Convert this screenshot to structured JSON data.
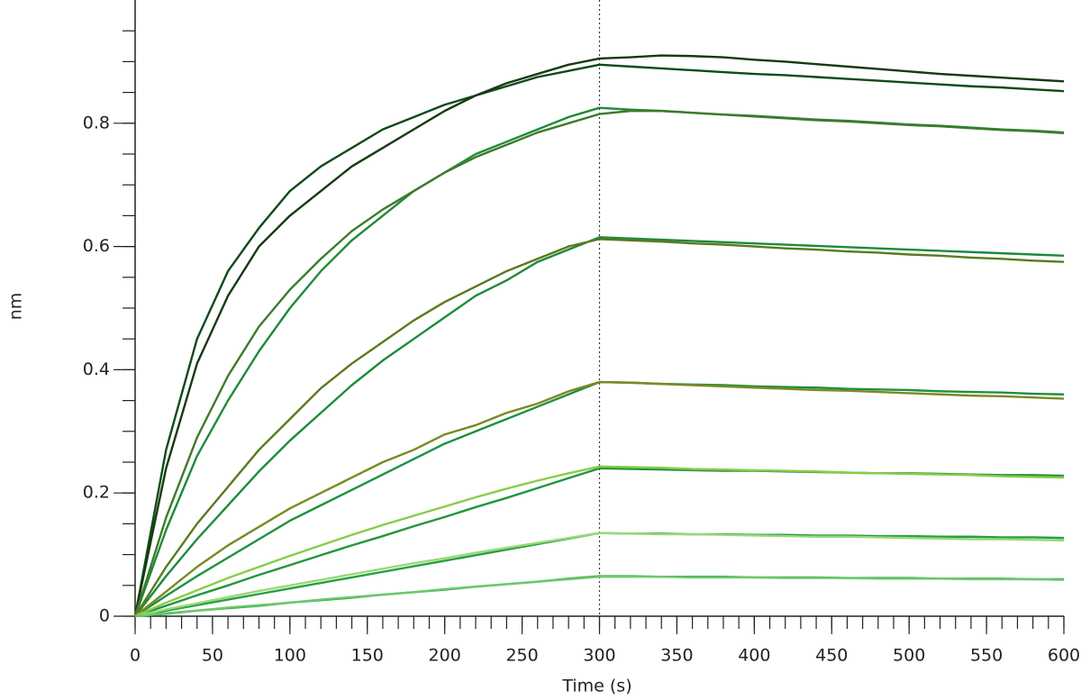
{
  "chart_data": {
    "type": "line",
    "xlabel": "Time (s)",
    "ylabel": "nm",
    "x": [
      0,
      20,
      40,
      60,
      80,
      100,
      120,
      140,
      160,
      180,
      200,
      220,
      240,
      260,
      280,
      300,
      320,
      340,
      360,
      380,
      400,
      420,
      440,
      460,
      480,
      500,
      520,
      540,
      560,
      580,
      600
    ],
    "xlim": [
      0,
      600
    ],
    "xticks": [
      0,
      50,
      100,
      150,
      200,
      250,
      300,
      350,
      400,
      450,
      500,
      550,
      600
    ],
    "xminor_ticks": [
      0,
      10,
      20,
      30,
      40,
      50,
      60,
      70,
      80,
      90,
      100,
      110,
      120,
      130,
      140,
      150,
      160,
      170,
      180,
      190,
      200,
      210,
      220,
      230,
      240,
      250,
      260,
      270,
      280,
      290,
      300,
      310,
      320,
      330,
      340,
      350,
      360,
      370,
      380,
      390,
      400,
      410,
      420,
      430,
      440,
      450,
      460,
      470,
      480,
      490,
      500,
      510,
      520,
      530,
      540,
      550,
      560,
      570,
      580,
      590,
      600
    ],
    "ylim": [
      0,
      1.0
    ],
    "yticks": [
      0,
      0.2,
      0.4,
      0.6,
      0.8
    ],
    "yminor_ticks": [
      0,
      0.05,
      0.1,
      0.15,
      0.2,
      0.25,
      0.3,
      0.35,
      0.4,
      0.45,
      0.5,
      0.55,
      0.6,
      0.65,
      0.7,
      0.75,
      0.8,
      0.85,
      0.9,
      0.95
    ],
    "vlines": [
      300
    ],
    "series": [
      {
        "color": "#0f4a1a",
        "values": [
          0,
          0.27,
          0.45,
          0.56,
          0.63,
          0.69,
          0.73,
          0.76,
          0.79,
          0.81,
          0.83,
          0.845,
          0.86,
          0.875,
          0.885,
          0.895,
          0.892,
          0.889,
          0.886,
          0.883,
          0.88,
          0.878,
          0.875,
          0.872,
          0.869,
          0.866,
          0.863,
          0.86,
          0.858,
          0.855,
          0.852
        ]
      },
      {
        "color": "#163a12",
        "values": [
          0,
          0.24,
          0.41,
          0.52,
          0.6,
          0.65,
          0.69,
          0.73,
          0.76,
          0.79,
          0.82,
          0.845,
          0.865,
          0.88,
          0.895,
          0.905,
          0.907,
          0.91,
          0.909,
          0.907,
          0.903,
          0.9,
          0.896,
          0.892,
          0.888,
          0.884,
          0.88,
          0.877,
          0.874,
          0.871,
          0.868
        ]
      },
      {
        "color": "#1f8a3a",
        "values": [
          0,
          0.14,
          0.26,
          0.35,
          0.43,
          0.5,
          0.56,
          0.61,
          0.65,
          0.69,
          0.72,
          0.75,
          0.77,
          0.79,
          0.81,
          0.825,
          0.822,
          0.82,
          0.817,
          0.814,
          0.812,
          0.809,
          0.806,
          0.804,
          0.801,
          0.798,
          0.796,
          0.793,
          0.79,
          0.788,
          0.785
        ]
      },
      {
        "color": "#3f7a2a",
        "values": [
          0,
          0.16,
          0.29,
          0.39,
          0.47,
          0.53,
          0.58,
          0.625,
          0.66,
          0.69,
          0.72,
          0.745,
          0.765,
          0.785,
          0.8,
          0.815,
          0.82,
          0.82,
          0.817,
          0.814,
          0.811,
          0.808,
          0.805,
          0.803,
          0.8,
          0.797,
          0.795,
          0.792,
          0.789,
          0.787,
          0.784
        ]
      },
      {
        "color": "#1d8a3c",
        "values": [
          0,
          0.065,
          0.125,
          0.18,
          0.235,
          0.285,
          0.33,
          0.375,
          0.415,
          0.45,
          0.485,
          0.52,
          0.545,
          0.575,
          0.595,
          0.615,
          0.613,
          0.611,
          0.609,
          0.607,
          0.605,
          0.603,
          0.601,
          0.599,
          0.597,
          0.595,
          0.593,
          0.591,
          0.589,
          0.587,
          0.585
        ]
      },
      {
        "color": "#5a7a1e",
        "values": [
          0,
          0.08,
          0.15,
          0.21,
          0.27,
          0.32,
          0.37,
          0.41,
          0.445,
          0.48,
          0.51,
          0.535,
          0.56,
          0.58,
          0.6,
          0.612,
          0.61,
          0.608,
          0.605,
          0.603,
          0.6,
          0.597,
          0.595,
          0.592,
          0.59,
          0.587,
          0.585,
          0.582,
          0.58,
          0.577,
          0.575
        ]
      },
      {
        "color": "#1e9040",
        "values": [
          0,
          0.033,
          0.065,
          0.095,
          0.125,
          0.155,
          0.18,
          0.205,
          0.23,
          0.255,
          0.28,
          0.3,
          0.32,
          0.34,
          0.36,
          0.38,
          0.379,
          0.377,
          0.376,
          0.375,
          0.373,
          0.372,
          0.371,
          0.369,
          0.368,
          0.367,
          0.365,
          0.364,
          0.363,
          0.361,
          0.36
        ]
      },
      {
        "color": "#7a8a22",
        "values": [
          0,
          0.04,
          0.08,
          0.115,
          0.145,
          0.175,
          0.2,
          0.225,
          0.25,
          0.27,
          0.295,
          0.31,
          0.33,
          0.345,
          0.365,
          0.38,
          0.379,
          0.377,
          0.375,
          0.373,
          0.371,
          0.369,
          0.367,
          0.366,
          0.364,
          0.362,
          0.36,
          0.358,
          0.357,
          0.355,
          0.353
        ]
      },
      {
        "color": "#22963c",
        "values": [
          0,
          0.017,
          0.034,
          0.05,
          0.067,
          0.083,
          0.099,
          0.115,
          0.13,
          0.146,
          0.161,
          0.177,
          0.192,
          0.208,
          0.224,
          0.24,
          0.239,
          0.238,
          0.237,
          0.236,
          0.236,
          0.235,
          0.234,
          0.233,
          0.232,
          0.232,
          0.231,
          0.23,
          0.229,
          0.229,
          0.228
        ]
      },
      {
        "color": "#8acc4a",
        "values": [
          0,
          0.022,
          0.042,
          0.062,
          0.08,
          0.098,
          0.115,
          0.132,
          0.148,
          0.163,
          0.178,
          0.193,
          0.207,
          0.22,
          0.232,
          0.243,
          0.242,
          0.241,
          0.239,
          0.238,
          0.237,
          0.236,
          0.235,
          0.233,
          0.232,
          0.231,
          0.23,
          0.229,
          0.227,
          0.226,
          0.225
        ]
      },
      {
        "color": "#25a040",
        "values": [
          0,
          0.009,
          0.018,
          0.027,
          0.036,
          0.045,
          0.054,
          0.063,
          0.072,
          0.081,
          0.09,
          0.099,
          0.108,
          0.117,
          0.126,
          0.135,
          0.134,
          0.134,
          0.133,
          0.133,
          0.132,
          0.132,
          0.131,
          0.131,
          0.13,
          0.13,
          0.129,
          0.129,
          0.128,
          0.128,
          0.127
        ]
      },
      {
        "color": "#9ad87a",
        "values": [
          0,
          0.011,
          0.021,
          0.031,
          0.041,
          0.05,
          0.059,
          0.068,
          0.077,
          0.086,
          0.094,
          0.103,
          0.111,
          0.119,
          0.127,
          0.135,
          0.134,
          0.133,
          0.133,
          0.132,
          0.131,
          0.13,
          0.129,
          0.129,
          0.128,
          0.127,
          0.126,
          0.125,
          0.125,
          0.124,
          0.123
        ]
      },
      {
        "color": "#28a844",
        "values": [
          0,
          0.004,
          0.009,
          0.013,
          0.017,
          0.022,
          0.026,
          0.03,
          0.035,
          0.039,
          0.043,
          0.048,
          0.052,
          0.056,
          0.061,
          0.065,
          0.065,
          0.064,
          0.064,
          0.064,
          0.063,
          0.063,
          0.063,
          0.062,
          0.062,
          0.062,
          0.061,
          0.061,
          0.061,
          0.06,
          0.06
        ]
      },
      {
        "color": "#6cc86a",
        "values": [
          0,
          0.005,
          0.009,
          0.014,
          0.018,
          0.022,
          0.027,
          0.031,
          0.035,
          0.039,
          0.044,
          0.048,
          0.052,
          0.056,
          0.06,
          0.064,
          0.064,
          0.064,
          0.063,
          0.063,
          0.063,
          0.062,
          0.062,
          0.062,
          0.061,
          0.061,
          0.061,
          0.06,
          0.06,
          0.06,
          0.059
        ]
      }
    ]
  }
}
